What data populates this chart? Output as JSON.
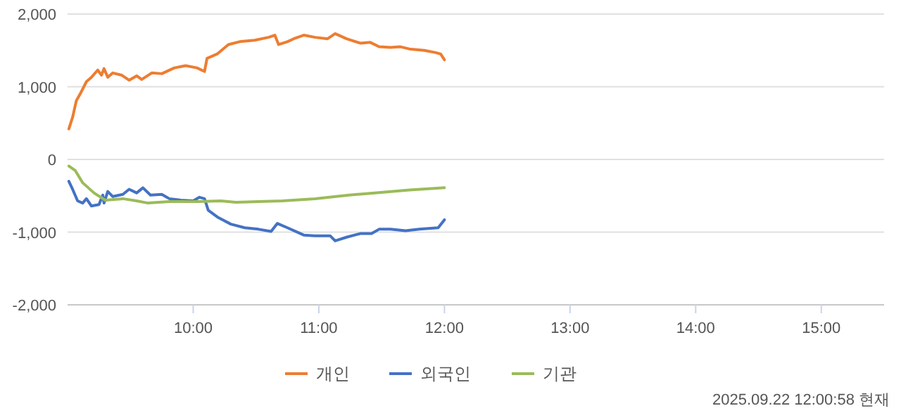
{
  "chart_data": {
    "type": "line",
    "xlim": [
      9,
      15.5
    ],
    "xticks": [
      {
        "value": 10,
        "label": "10:00"
      },
      {
        "value": 11,
        "label": "11:00"
      },
      {
        "value": 12,
        "label": "12:00"
      },
      {
        "value": 13,
        "label": "13:00"
      },
      {
        "value": 14,
        "label": "14:00"
      },
      {
        "value": 15,
        "label": "15:00"
      }
    ],
    "ylim": [
      -2000,
      2000
    ],
    "yticks": [
      {
        "value": -2000,
        "label": "-2,000"
      },
      {
        "value": -1000,
        "label": "-1,000"
      },
      0,
      {
        "value": 1000,
        "label": "1,000"
      },
      {
        "value": 2000,
        "label": "2,000"
      }
    ],
    "grid": "y",
    "legend": "bottom",
    "marker": "none",
    "line_style": "solid",
    "annotations": [
      "2025.09.22 12:00:58 현재"
    ],
    "series": [
      {
        "name": "개인",
        "color": "#ed7d31",
        "x": [
          9.01,
          9.04,
          9.07,
          9.1,
          9.15,
          9.19,
          9.24,
          9.27,
          9.29,
          9.32,
          9.36,
          9.43,
          9.49,
          9.55,
          9.59,
          9.67,
          9.75,
          9.85,
          9.94,
          10.03,
          10.09,
          10.11,
          10.19,
          10.28,
          10.37,
          10.49,
          10.6,
          10.65,
          10.68,
          10.75,
          10.8,
          10.88,
          10.97,
          11.07,
          11.13,
          11.22,
          11.33,
          11.41,
          11.48,
          11.57,
          11.65,
          11.72,
          11.84,
          11.93,
          11.97,
          12
        ],
        "values": [
          420,
          580,
          810,
          900,
          1070,
          1130,
          1230,
          1160,
          1250,
          1130,
          1190,
          1160,
          1090,
          1150,
          1100,
          1190,
          1180,
          1260,
          1290,
          1260,
          1210,
          1390,
          1450,
          1580,
          1620,
          1640,
          1680,
          1710,
          1580,
          1620,
          1660,
          1710,
          1680,
          1660,
          1730,
          1660,
          1600,
          1610,
          1550,
          1540,
          1550,
          1520,
          1500,
          1470,
          1450,
          1370
        ]
      },
      {
        "name": "외국인",
        "color": "#4472c4",
        "x": [
          9.01,
          9.04,
          9.08,
          9.12,
          9.15,
          9.19,
          9.25,
          9.28,
          9.29,
          9.32,
          9.36,
          9.44,
          9.49,
          9.55,
          9.6,
          9.66,
          9.75,
          9.81,
          9.9,
          10,
          10.05,
          10.09,
          10.12,
          10.2,
          10.3,
          10.41,
          10.52,
          10.62,
          10.67,
          10.75,
          10.88,
          10.97,
          11.09,
          11.13,
          11.22,
          11.33,
          11.42,
          11.48,
          11.57,
          11.69,
          11.8,
          11.95,
          12
        ],
        "values": [
          -300,
          -410,
          -570,
          -600,
          -540,
          -640,
          -620,
          -490,
          -600,
          -440,
          -510,
          -480,
          -410,
          -460,
          -390,
          -490,
          -480,
          -540,
          -560,
          -570,
          -520,
          -540,
          -700,
          -800,
          -890,
          -940,
          -960,
          -990,
          -880,
          -940,
          -1040,
          -1050,
          -1050,
          -1120,
          -1070,
          -1020,
          -1020,
          -960,
          -960,
          -980,
          -960,
          -940,
          -830
        ]
      },
      {
        "name": "기관",
        "color": "#9bbb59",
        "x": [
          9.01,
          9.06,
          9.12,
          9.21,
          9.3,
          9.44,
          9.55,
          9.64,
          9.81,
          10.04,
          10.22,
          10.34,
          10.52,
          10.71,
          10.97,
          11.24,
          11.46,
          11.72,
          12
        ],
        "values": [
          -90,
          -150,
          -320,
          -460,
          -560,
          -540,
          -570,
          -600,
          -580,
          -580,
          -570,
          -590,
          -580,
          -570,
          -540,
          -490,
          -460,
          -420,
          -390
        ]
      }
    ]
  }
}
